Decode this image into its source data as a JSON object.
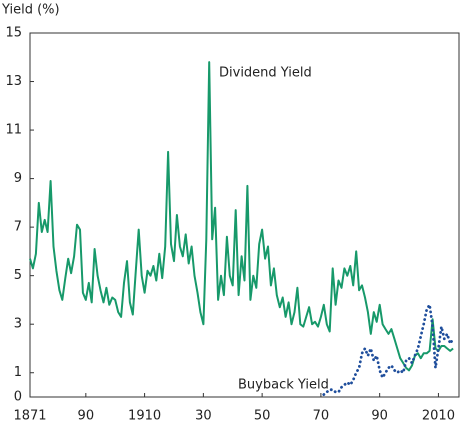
{
  "chart_data": {
    "type": "line",
    "ylabel": "Yield (%)",
    "annotations": [
      {
        "text": "Dividend Yield",
        "series": 0
      },
      {
        "text": "Buyback Yield",
        "series": 1
      }
    ],
    "xlim": [
      1871,
      2017
    ],
    "xticks": [
      1871,
      {
        "value": 1890,
        "label": "90"
      },
      1910,
      {
        "value": 1930,
        "label": "30"
      },
      {
        "value": 1950,
        "label": "50"
      },
      {
        "value": 1970,
        "label": "70"
      },
      {
        "value": 1990,
        "label": "90"
      },
      2010
    ],
    "ylim": [
      0,
      15
    ],
    "yticks": [
      0,
      1,
      3,
      5,
      7,
      9,
      11,
      13,
      15
    ],
    "series": [
      {
        "name": "Dividend Yield",
        "color": "#17996a",
        "style": "solid",
        "x": [
          1871,
          1872,
          1873,
          1874,
          1875,
          1876,
          1877,
          1878,
          1879,
          1880,
          1881,
          1882,
          1883,
          1884,
          1885,
          1886,
          1887,
          1888,
          1889,
          1890,
          1891,
          1892,
          1893,
          1894,
          1895,
          1896,
          1897,
          1898,
          1899,
          1900,
          1901,
          1902,
          1903,
          1904,
          1905,
          1906,
          1907,
          1908,
          1909,
          1910,
          1911,
          1912,
          1913,
          1914,
          1915,
          1916,
          1917,
          1918,
          1919,
          1920,
          1921,
          1922,
          1923,
          1924,
          1925,
          1926,
          1927,
          1928,
          1929,
          1930,
          1931,
          1932,
          1933,
          1934,
          1935,
          1936,
          1937,
          1938,
          1939,
          1940,
          1941,
          1942,
          1943,
          1944,
          1945,
          1946,
          1947,
          1948,
          1949,
          1950,
          1951,
          1952,
          1953,
          1954,
          1955,
          1956,
          1957,
          1958,
          1959,
          1960,
          1961,
          1962,
          1963,
          1964,
          1965,
          1966,
          1967,
          1968,
          1969,
          1970,
          1971,
          1972,
          1973,
          1974,
          1975,
          1976,
          1977,
          1978,
          1979,
          1980,
          1981,
          1982,
          1983,
          1984,
          1985,
          1986,
          1987,
          1988,
          1989,
          1990,
          1991,
          1992,
          1993,
          1994,
          1995,
          1996,
          1997,
          1998,
          1999,
          2000,
          2001,
          2002,
          2003,
          2004,
          2005,
          2006,
          2007,
          2008,
          2009,
          2010,
          2011,
          2012,
          2013,
          2014,
          2015
        ],
        "values": [
          5.7,
          5.3,
          5.9,
          8.0,
          6.8,
          7.3,
          6.8,
          8.9,
          6.2,
          5.2,
          4.4,
          4.0,
          4.9,
          5.7,
          5.1,
          5.8,
          7.1,
          6.9,
          4.3,
          4.0,
          4.7,
          3.9,
          6.1,
          5.0,
          4.4,
          3.9,
          4.5,
          3.8,
          4.1,
          4.0,
          3.5,
          3.3,
          4.7,
          5.6,
          3.9,
          3.4,
          5.2,
          6.9,
          5.0,
          4.3,
          5.2,
          5.0,
          5.4,
          4.8,
          5.9,
          4.9,
          6.2,
          10.1,
          6.3,
          5.6,
          7.5,
          6.2,
          5.8,
          6.7,
          5.5,
          6.2,
          5.0,
          4.3,
          3.5,
          3.0,
          6.5,
          13.8,
          6.5,
          7.8,
          4.0,
          5.0,
          4.2,
          6.6,
          5.0,
          4.6,
          7.7,
          4.2,
          5.8,
          4.8,
          8.7,
          4.0,
          5.0,
          4.5,
          6.3,
          6.9,
          5.7,
          6.2,
          4.6,
          5.3,
          4.2,
          3.7,
          4.1,
          3.3,
          3.9,
          3.0,
          3.5,
          4.5,
          3.0,
          2.9,
          3.3,
          3.7,
          3.0,
          3.1,
          2.9,
          3.3,
          3.8,
          3.0,
          2.7,
          5.3,
          3.8,
          4.8,
          4.5,
          5.3,
          5.0,
          5.4,
          4.6,
          6.0,
          4.4,
          4.6,
          4.1,
          3.5,
          2.6,
          3.5,
          3.1,
          3.8,
          3.0,
          2.8,
          2.6,
          2.8,
          2.4,
          2.0,
          1.6,
          1.4,
          1.2,
          1.1,
          1.3,
          1.7,
          1.8,
          1.6,
          1.8,
          1.8,
          1.9,
          3.2,
          2.0,
          1.9,
          2.1,
          2.1,
          2.0,
          1.9,
          2.0
        ]
      },
      {
        "name": "Buyback Yield",
        "color": "#1f4e9c",
        "style": "dotted",
        "x": [
          1971,
          1972,
          1973,
          1974,
          1975,
          1976,
          1977,
          1978,
          1979,
          1980,
          1981,
          1982,
          1983,
          1984,
          1985,
          1986,
          1987,
          1988,
          1989,
          1990,
          1991,
          1992,
          1993,
          1994,
          1995,
          1996,
          1997,
          1998,
          1999,
          2000,
          2001,
          2002,
          2003,
          2004,
          2005,
          2006,
          2007,
          2008,
          2009,
          2010,
          2011,
          2012,
          2013,
          2014,
          2015
        ],
        "values": [
          0.1,
          0.2,
          0.3,
          0.3,
          0.2,
          0.2,
          0.4,
          0.5,
          0.6,
          0.5,
          0.7,
          1.0,
          1.2,
          1.8,
          2.0,
          1.7,
          2.0,
          1.5,
          1.7,
          1.1,
          0.8,
          1.0,
          1.2,
          1.3,
          1.1,
          1.0,
          1.1,
          1.0,
          1.5,
          1.6,
          1.4,
          1.7,
          2.0,
          2.5,
          3.0,
          3.6,
          3.8,
          2.9,
          1.2,
          2.0,
          2.9,
          2.4,
          2.6,
          2.2,
          2.4
        ]
      }
    ]
  }
}
